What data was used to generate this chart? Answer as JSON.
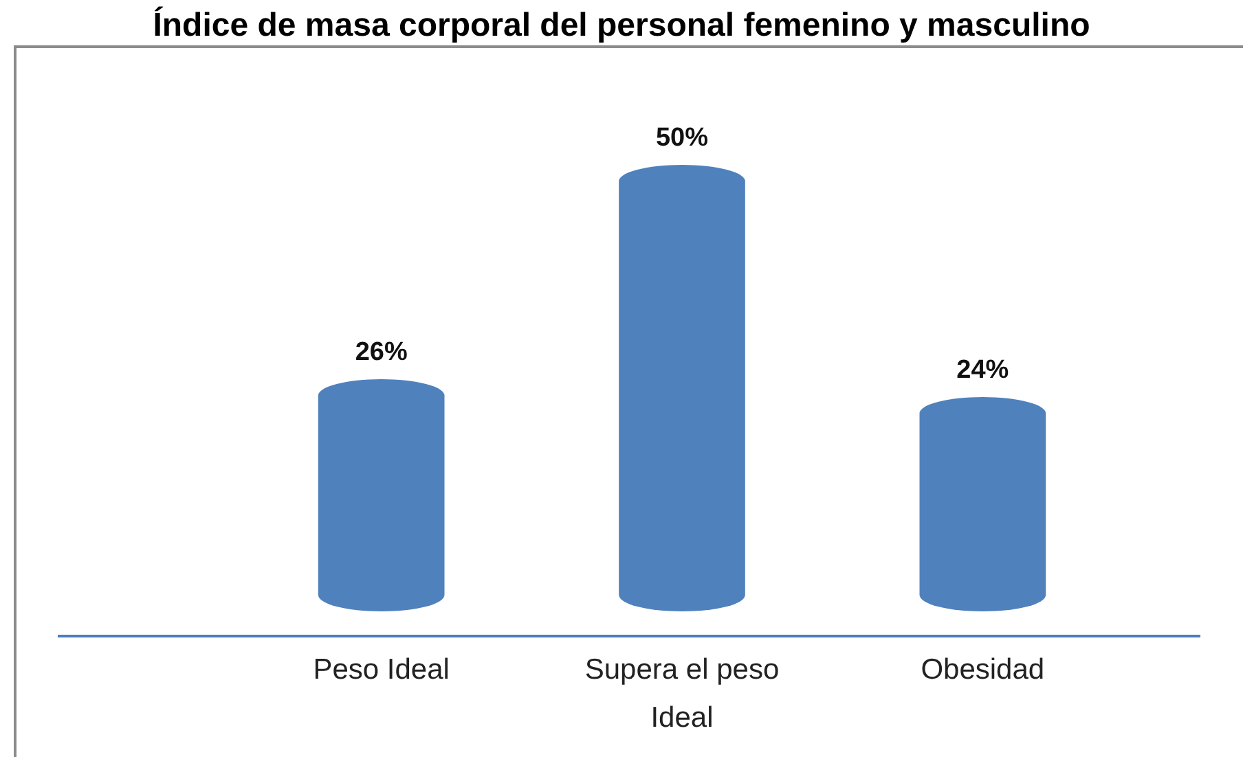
{
  "chart_data": {
    "type": "bar",
    "title": "Índice de masa corporal del personal femenino y masculino",
    "categories": [
      "Peso Ideal",
      "Supera el peso Ideal",
      "Obesidad"
    ],
    "values": [
      26,
      50,
      24
    ],
    "value_labels": [
      "26%",
      "50%",
      "24%"
    ],
    "color": "#4f81bd"
  }
}
